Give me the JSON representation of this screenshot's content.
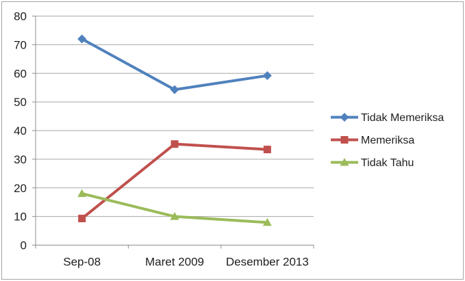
{
  "chart_data": {
    "type": "line",
    "title": "",
    "categories": [
      "Sep-08",
      "Maret 2009",
      "Desember 2013"
    ],
    "series": [
      {
        "name": "Tidak Memeriksa",
        "marker": "diamond",
        "color": "#4F81BD",
        "values": [
          72,
          54.3,
          59.2
        ]
      },
      {
        "name": "Memeriksa",
        "marker": "square",
        "color": "#C0504D",
        "values": [
          9.3,
          35.3,
          33.4
        ]
      },
      {
        "name": "Tidak Tahu",
        "marker": "triangle",
        "color": "#9BBB59",
        "values": [
          18,
          10,
          7.9
        ]
      }
    ],
    "xlabel": "",
    "ylabel": "",
    "ylim": [
      0,
      80
    ],
    "yticks": [
      0,
      10,
      20,
      30,
      40,
      50,
      60,
      70,
      80
    ],
    "grid": true,
    "legend_position": "right"
  },
  "icons": {
    "legend_marker_tidak_memeriksa": "diamond-marker-icon",
    "legend_marker_memeriksa": "square-marker-icon",
    "legend_marker_tidak_tahu": "triangle-marker-icon"
  },
  "colors": {
    "background": "#FFFFFF",
    "chart_border": "#A3A3A3",
    "gridline": "#A6A6A6",
    "axis": "#8C8C8C",
    "text": "#1E1E1E"
  }
}
